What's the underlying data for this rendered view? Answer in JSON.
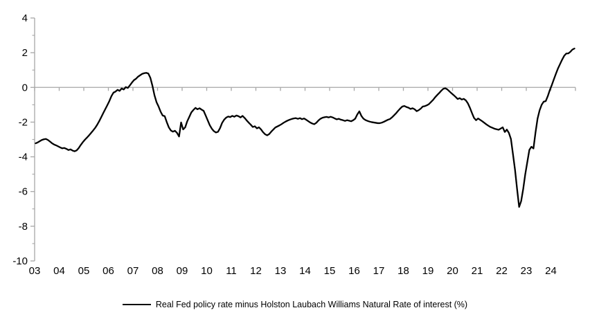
{
  "chart_data": {
    "type": "line",
    "title": "",
    "xlabel": "",
    "ylabel": "",
    "ylim": [
      -10,
      4
    ],
    "y_ticks": [
      4,
      2,
      0,
      -2,
      -4,
      -6,
      -8,
      -10
    ],
    "y_minor_ticks": [
      3,
      1,
      -1,
      -3,
      -5,
      -7,
      -9
    ],
    "x_tick_labels": [
      "03",
      "04",
      "05",
      "06",
      "07",
      "08",
      "09",
      "10",
      "11",
      "12",
      "13",
      "14",
      "15",
      "16",
      "17",
      "18",
      "19",
      "20",
      "21",
      "22",
      "23",
      "24"
    ],
    "x_year_span": 22,
    "grid": "zero-line-only",
    "legend_position": "bottom-center",
    "axis_color": "#a6a6a6",
    "label_color": "#000000",
    "background_color": "#ffffff",
    "series": [
      {
        "name": "Real Fed policy rate minus Holston Laubach Williams Natural Rate of interest (%)",
        "color": "#000000",
        "start_year": 2003,
        "frequency": "monthly",
        "values": [
          -3.22,
          -3.17,
          -3.1,
          -3.03,
          -2.99,
          -2.97,
          -3.03,
          -3.12,
          -3.22,
          -3.29,
          -3.34,
          -3.4,
          -3.46,
          -3.51,
          -3.49,
          -3.54,
          -3.61,
          -3.57,
          -3.64,
          -3.68,
          -3.63,
          -3.5,
          -3.32,
          -3.16,
          -3.02,
          -2.9,
          -2.77,
          -2.63,
          -2.49,
          -2.34,
          -2.16,
          -1.95,
          -1.72,
          -1.48,
          -1.25,
          -1.02,
          -0.78,
          -0.5,
          -0.3,
          -0.24,
          -0.14,
          -0.2,
          -0.06,
          -0.12,
          0.02,
          -0.03,
          0.12,
          0.28,
          0.42,
          0.5,
          0.62,
          0.7,
          0.78,
          0.82,
          0.84,
          0.8,
          0.55,
          0.1,
          -0.45,
          -0.85,
          -1.1,
          -1.4,
          -1.62,
          -1.66,
          -2.0,
          -2.3,
          -2.48,
          -2.55,
          -2.5,
          -2.62,
          -2.83,
          -2.02,
          -2.42,
          -2.3,
          -1.95,
          -1.7,
          -1.44,
          -1.3,
          -1.18,
          -1.26,
          -1.2,
          -1.28,
          -1.35,
          -1.62,
          -1.9,
          -2.18,
          -2.38,
          -2.52,
          -2.6,
          -2.56,
          -2.35,
          -2.05,
          -1.86,
          -1.74,
          -1.68,
          -1.71,
          -1.64,
          -1.69,
          -1.62,
          -1.66,
          -1.73,
          -1.64,
          -1.76,
          -1.9,
          -2.03,
          -2.15,
          -2.28,
          -2.24,
          -2.36,
          -2.3,
          -2.42,
          -2.58,
          -2.7,
          -2.76,
          -2.69,
          -2.55,
          -2.43,
          -2.31,
          -2.25,
          -2.19,
          -2.12,
          -2.04,
          -1.97,
          -1.91,
          -1.86,
          -1.82,
          -1.79,
          -1.77,
          -1.81,
          -1.77,
          -1.83,
          -1.79,
          -1.86,
          -1.94,
          -2.02,
          -2.08,
          -2.12,
          -2.04,
          -1.91,
          -1.81,
          -1.75,
          -1.72,
          -1.7,
          -1.73,
          -1.69,
          -1.73,
          -1.79,
          -1.84,
          -1.81,
          -1.86,
          -1.89,
          -1.93,
          -1.89,
          -1.92,
          -1.95,
          -1.89,
          -1.8,
          -1.56,
          -1.38,
          -1.64,
          -1.8,
          -1.88,
          -1.93,
          -1.97,
          -2.0,
          -2.02,
          -2.04,
          -2.06,
          -2.06,
          -2.03,
          -1.98,
          -1.92,
          -1.86,
          -1.82,
          -1.72,
          -1.6,
          -1.48,
          -1.34,
          -1.21,
          -1.1,
          -1.07,
          -1.13,
          -1.17,
          -1.24,
          -1.2,
          -1.26,
          -1.37,
          -1.31,
          -1.22,
          -1.1,
          -1.08,
          -1.03,
          -0.96,
          -0.84,
          -0.72,
          -0.57,
          -0.44,
          -0.32,
          -0.19,
          -0.08,
          -0.05,
          -0.12,
          -0.23,
          -0.34,
          -0.44,
          -0.55,
          -0.67,
          -0.62,
          -0.7,
          -0.66,
          -0.75,
          -0.92,
          -1.18,
          -1.48,
          -1.76,
          -1.89,
          -1.79,
          -1.87,
          -1.95,
          -2.04,
          -2.13,
          -2.21,
          -2.28,
          -2.33,
          -2.38,
          -2.41,
          -2.44,
          -2.37,
          -2.3,
          -2.57,
          -2.43,
          -2.62,
          -2.97,
          -3.85,
          -4.75,
          -5.85,
          -6.89,
          -6.55,
          -5.85,
          -5.0,
          -4.3,
          -3.6,
          -3.42,
          -3.52,
          -2.6,
          -1.8,
          -1.32,
          -1.0,
          -0.82,
          -0.79,
          -0.5,
          -0.15,
          0.15,
          0.48,
          0.8,
          1.1,
          1.35,
          1.6,
          1.82,
          1.95,
          1.96,
          2.05,
          2.18,
          2.24
        ]
      }
    ]
  },
  "legend": {
    "label": "Real Fed policy rate minus Holston Laubach Williams Natural Rate of interest (%)"
  }
}
